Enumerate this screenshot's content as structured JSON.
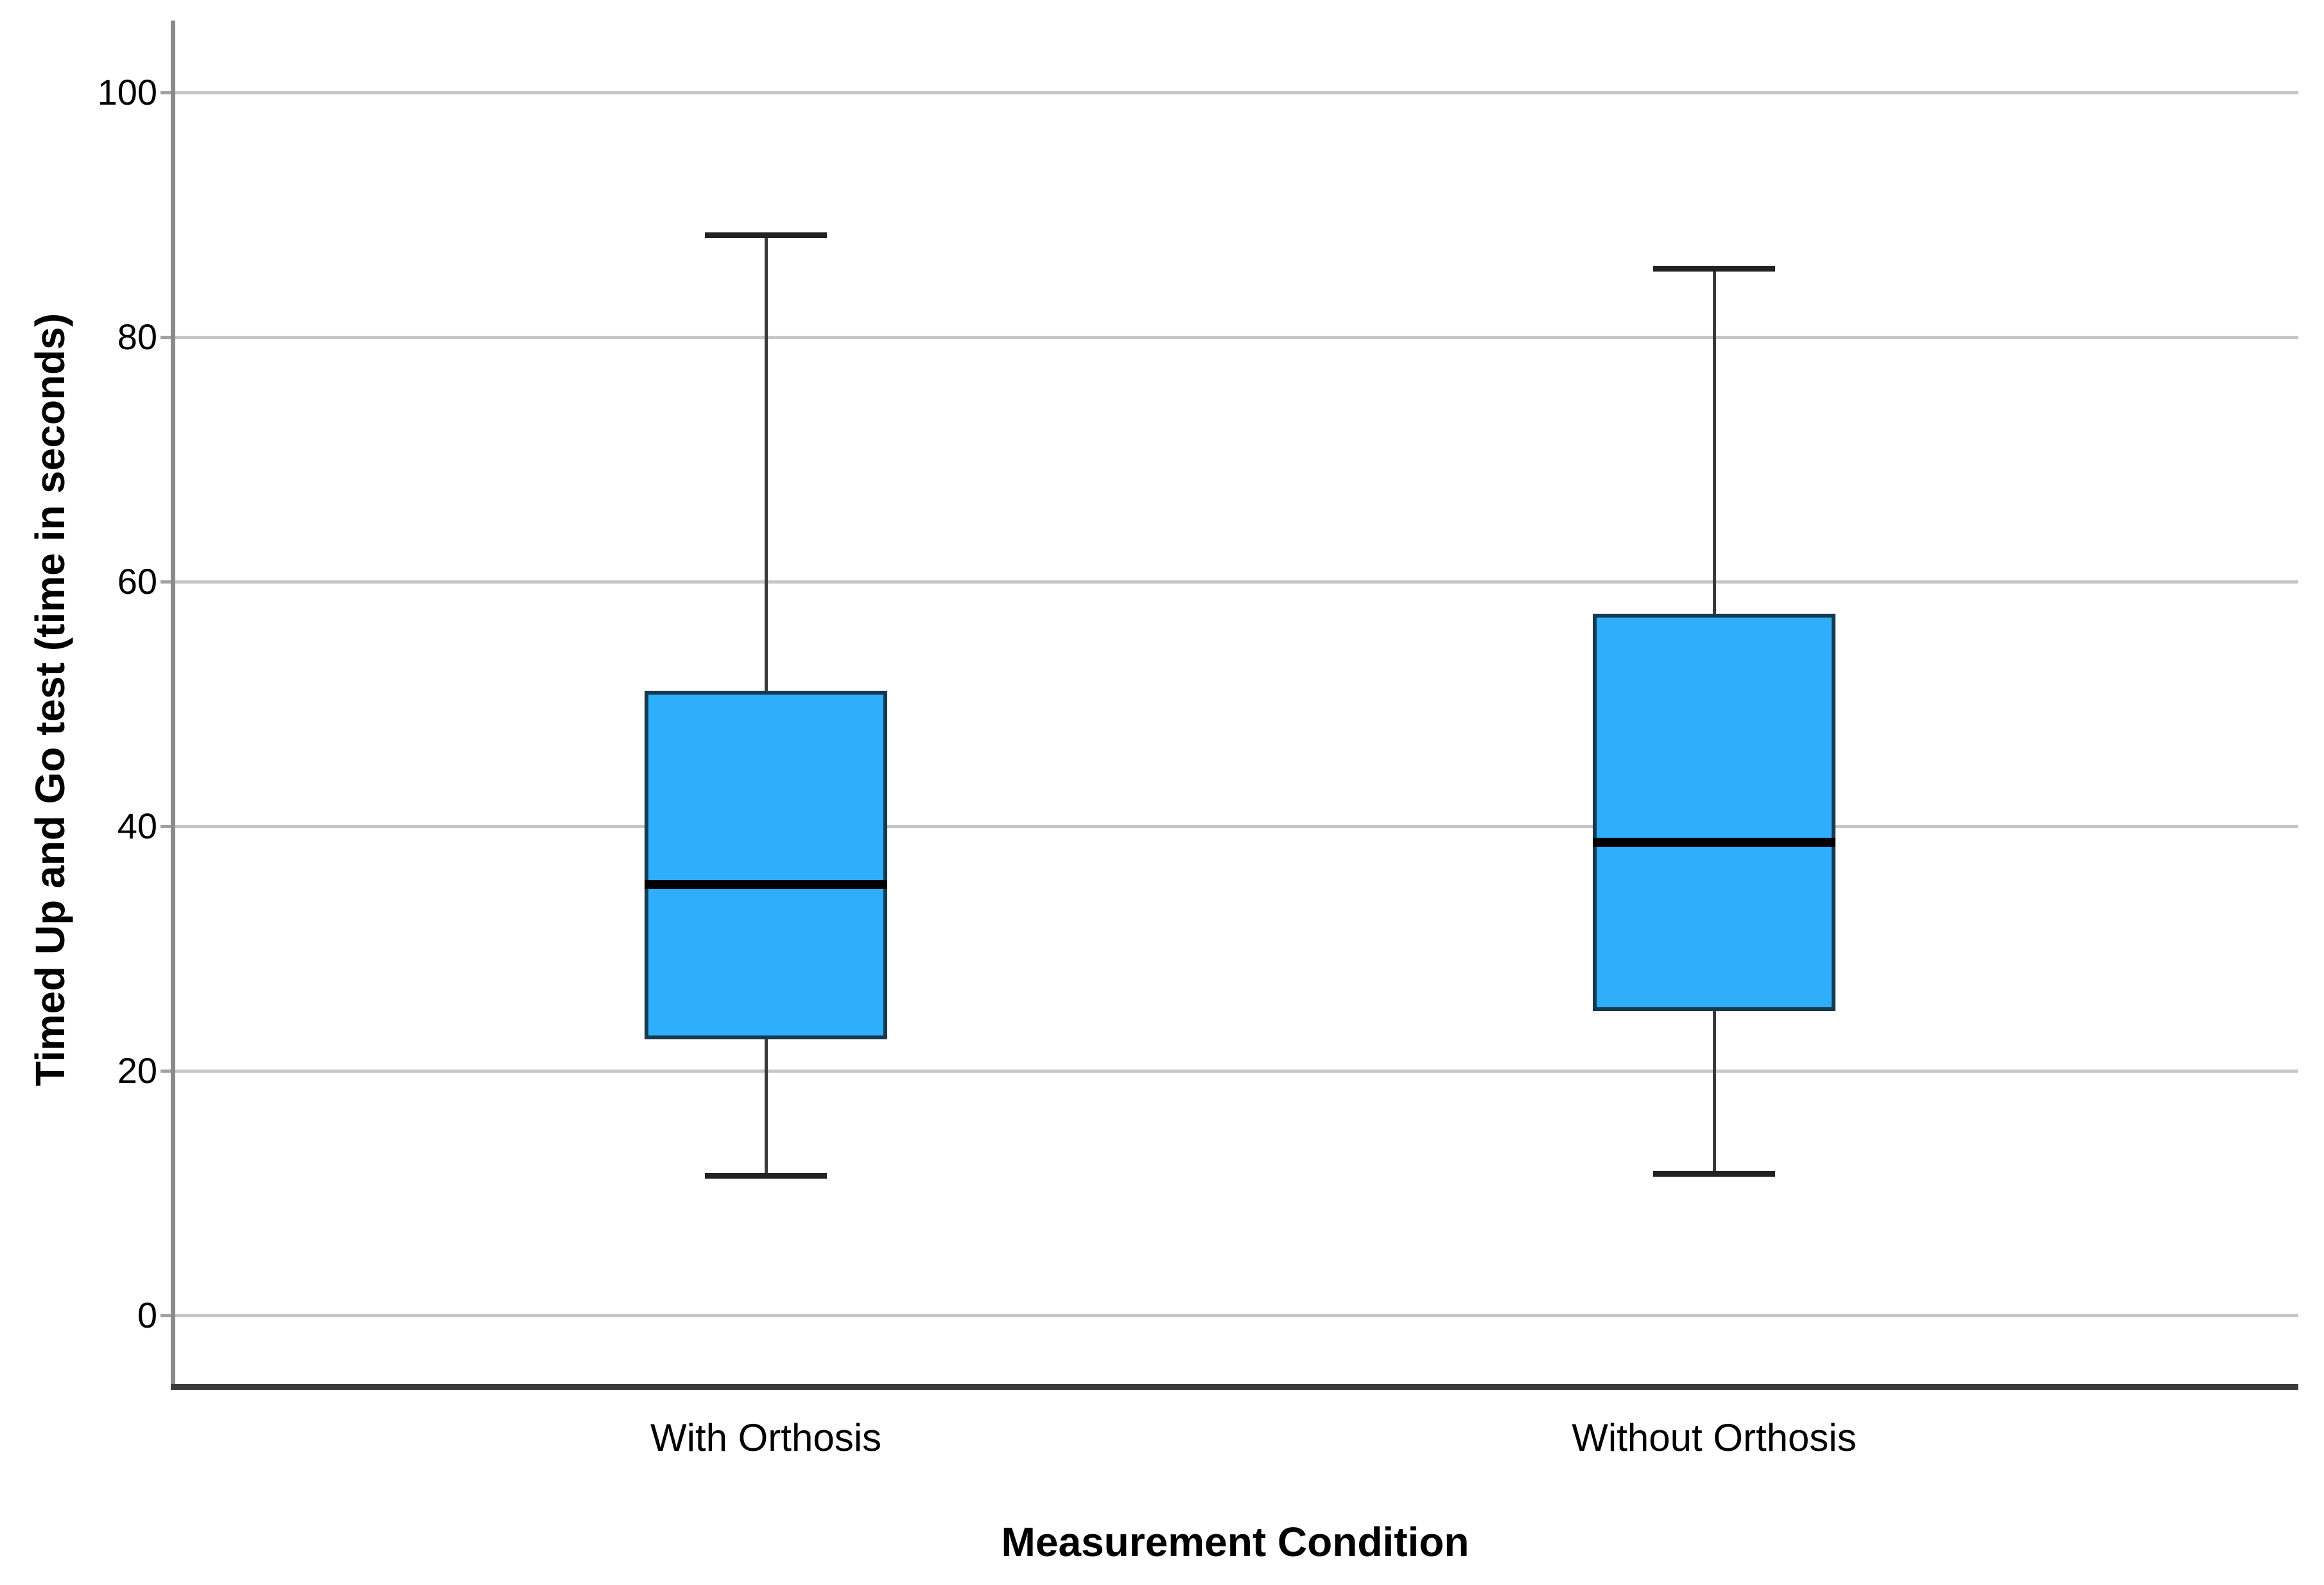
{
  "chart_data": {
    "type": "boxplot",
    "title": "",
    "xlabel": "Measurement Condition",
    "ylabel": "Timed Up and Go test (time in seconds)",
    "categories": [
      "With Orthosis",
      "Without Orthosis"
    ],
    "y_ticks": [
      0,
      20,
      40,
      60,
      80,
      100
    ],
    "ylim": [
      -6,
      106
    ],
    "grid": "horizontal-light-gray",
    "legend": "none",
    "series": [
      {
        "name": "With Orthosis",
        "whisker_low": 11.4,
        "q1": 22.6,
        "median": 35.2,
        "q3": 51.1,
        "whisker_high": 88.3
      },
      {
        "name": "Without Orthosis",
        "whisker_low": 11.6,
        "q1": 24.9,
        "median": 38.7,
        "q3": 57.4,
        "whisker_high": 85.6
      }
    ],
    "colors": {
      "box_fill": "#2faefc",
      "box_border": "#16394e",
      "median": "#000000",
      "whisker": "#3a3a3a",
      "whisker_cap": "#222222",
      "gridline": "#c6c6c6",
      "tick_stub": "#a2a2a2",
      "y_axis_line": "#8a8a8a",
      "x_axis_line": "#3a3a3a",
      "text": "#000000",
      "background": "#ffffff"
    }
  }
}
